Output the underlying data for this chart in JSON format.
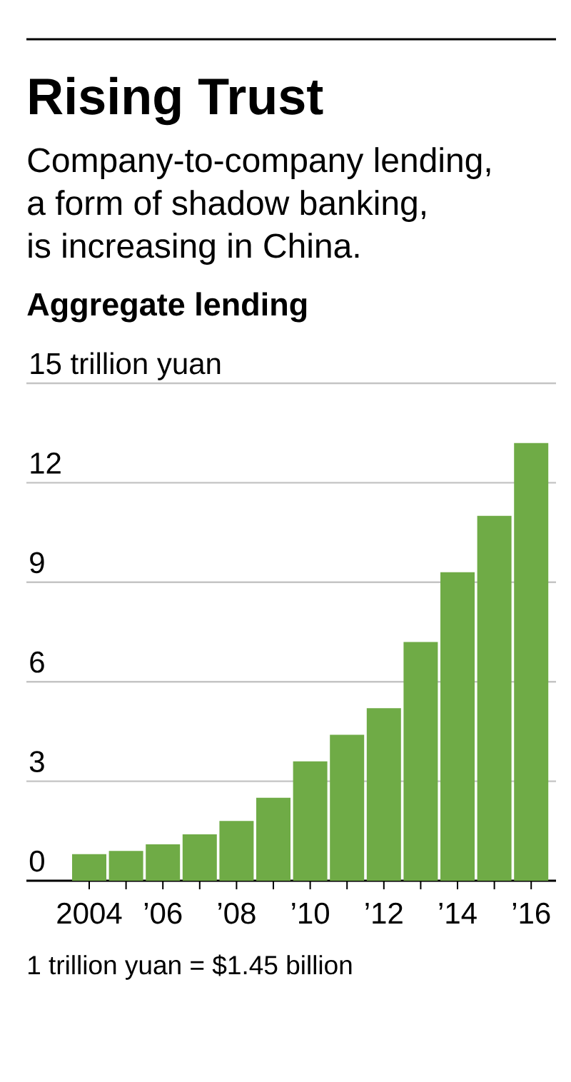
{
  "chart_data": {
    "type": "bar",
    "title": "Rising Trust",
    "subtitle": "Company-to-company lending, a form of shadow banking, is increasing in China.",
    "ylabel": "Aggregate lending",
    "categories": [
      "2004",
      null,
      "’06",
      null,
      "’08",
      null,
      "’10",
      null,
      "’12",
      null,
      "’14",
      null,
      "’16"
    ],
    "values": [
      0.8,
      0.9,
      1.1,
      1.4,
      1.8,
      2.5,
      3.6,
      4.4,
      5.2,
      7.2,
      9.3,
      11.0,
      13.2
    ],
    "color": "#6fab46",
    "ylim": [
      0,
      15
    ],
    "yticks": [
      0,
      3,
      6,
      9,
      12,
      {
        "value": 15,
        "label": "15 trillion yuan"
      }
    ],
    "grid": "y",
    "annotations": [
      "1 trillion yuan = $1.45 billion"
    ]
  }
}
